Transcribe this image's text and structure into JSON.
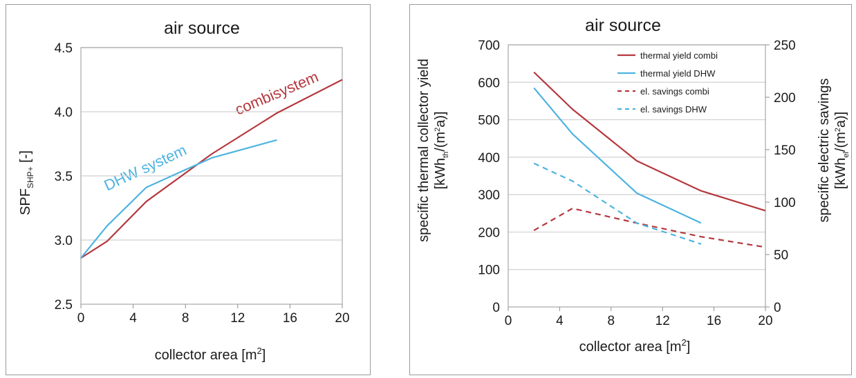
{
  "chart_data": [
    {
      "type": "line",
      "title": "air source",
      "xlabel": "collector area [m",
      "xlabel_sup": "2",
      "xlabel_end": "]",
      "ylabel": "SPF",
      "ylabel_sub": "SHP+",
      "ylabel_end": " [-]",
      "xlim": [
        0,
        20
      ],
      "ylim": [
        2.5,
        4.5
      ],
      "xticks": [
        0,
        4,
        8,
        12,
        16,
        20
      ],
      "yticks": [
        2.5,
        3.0,
        3.5,
        4.0,
        4.5
      ],
      "ytick_labels": [
        "2.5",
        "3.0",
        "3.5",
        "4.0",
        "4.5"
      ],
      "grid": "horizontal",
      "series": [
        {
          "name": "combisystem",
          "color": "#b5373d",
          "style": "solid",
          "x": [
            0,
            2,
            5,
            10,
            15,
            20
          ],
          "y": [
            2.86,
            2.99,
            3.3,
            3.67,
            3.99,
            4.25
          ]
        },
        {
          "name": "DHW system",
          "color": "#4db3e0",
          "style": "solid",
          "x": [
            0,
            2,
            5,
            10,
            15
          ],
          "y": [
            2.86,
            3.11,
            3.41,
            3.64,
            3.78
          ]
        }
      ]
    },
    {
      "type": "line",
      "title": "air source",
      "xlabel": "collector area [m",
      "xlabel_sup": "2",
      "xlabel_end": "]",
      "ylabel_line1": "specific thermal collector yield",
      "ylabel_line2_a": "[kWh",
      "ylabel_line2_sub": "th",
      "ylabel_line2_b": "/(m",
      "ylabel_line2_sup": "2",
      "ylabel_line2_c": "a)]",
      "y2label_line1": "specific electric savings",
      "y2label_line2_a": "[kWh",
      "y2label_line2_sub": "el",
      "y2label_line2_b": "/(m",
      "y2label_line2_sup": "2",
      "y2label_line2_c": "a)]",
      "xlim": [
        0,
        20
      ],
      "ylim": [
        0,
        700
      ],
      "y2lim": [
        0,
        250
      ],
      "xticks": [
        0,
        4,
        8,
        12,
        16,
        20
      ],
      "yticks": [
        0,
        100,
        200,
        300,
        400,
        500,
        600,
        700
      ],
      "y2ticks": [
        0,
        50,
        100,
        150,
        200,
        250
      ],
      "grid": "horizontal",
      "legend_position": "top-right",
      "series": [
        {
          "name": "thermal yield combi",
          "color": "#b5373d",
          "style": "solid",
          "axis": "left",
          "x": [
            2,
            5,
            10,
            15,
            20
          ],
          "y": [
            627,
            528,
            390,
            310,
            257
          ]
        },
        {
          "name": "thermal yield DHW",
          "color": "#4db3e0",
          "style": "solid",
          "axis": "left",
          "x": [
            2,
            5,
            10,
            15
          ],
          "y": [
            585,
            462,
            304,
            224
          ]
        },
        {
          "name": "el. savings combi",
          "color": "#b5373d",
          "style": "dashed",
          "axis": "right",
          "x": [
            2,
            5,
            10,
            15,
            20
          ],
          "y": [
            73,
            94,
            80,
            67,
            57
          ]
        },
        {
          "name": "el. savings DHW",
          "color": "#4db3e0",
          "style": "dashed",
          "axis": "right",
          "x": [
            2,
            5,
            10,
            15
          ],
          "y": [
            137,
            120,
            80,
            60
          ]
        }
      ]
    }
  ]
}
